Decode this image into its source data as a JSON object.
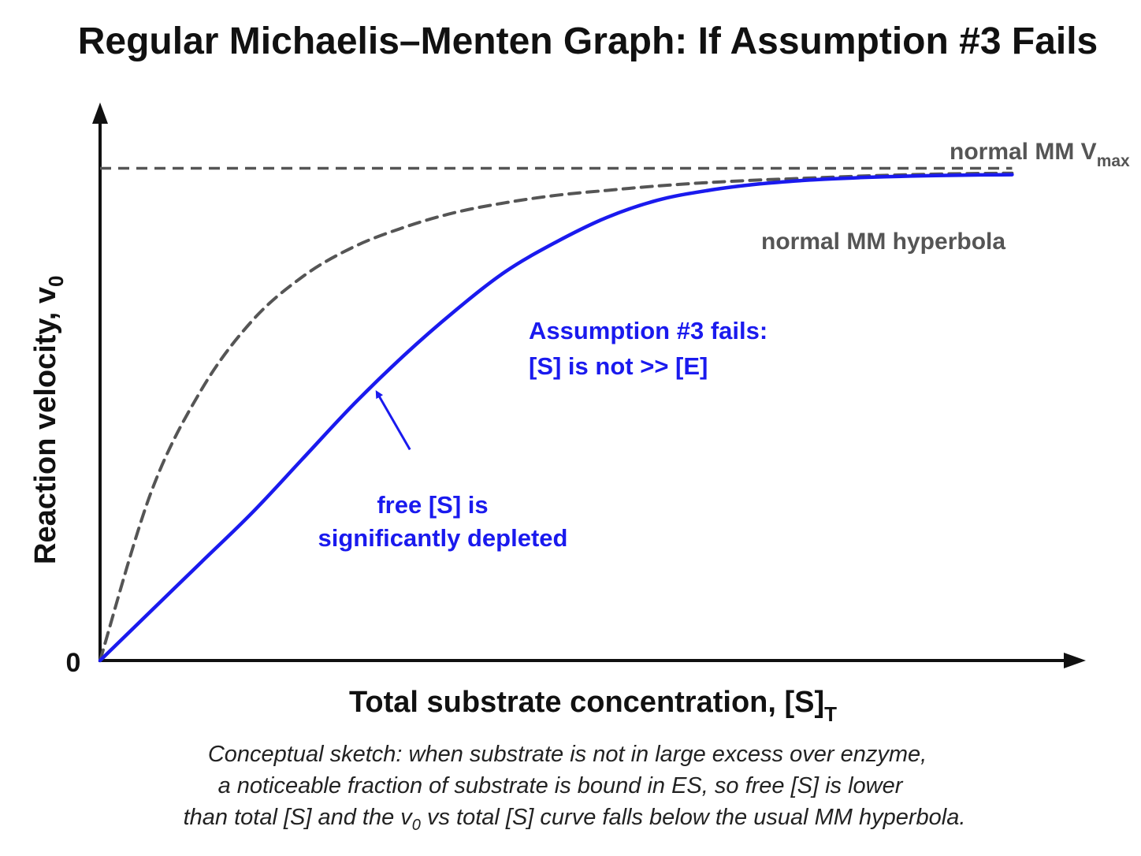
{
  "chart_data": {
    "type": "line",
    "title": "Regular Michaelis–Menten Graph: If Assumption #3 Fails",
    "xlabel": "Total substrate concentration, [S]",
    "xlabel_sub": "T",
    "ylabel": "Reaction velocity, v",
    "ylabel_sub": "0",
    "origin_tick": "0",
    "xlim": [
      0,
      10
    ],
    "ylim": [
      0,
      1.1
    ],
    "grid": false,
    "vmax": 1.0,
    "vmax_label": "normal MM V",
    "vmax_label_sub": "max",
    "series": [
      {
        "name": "normal MM hyperbola",
        "style": "dashed",
        "color": "#555555",
        "x": [
          0,
          0.5,
          1,
          1.5,
          2,
          2.5,
          3,
          3.5,
          4,
          4.5,
          5,
          5.5,
          6,
          6.5,
          7,
          7.5,
          8,
          8.5,
          9
        ],
        "values": [
          0,
          0.34,
          0.55,
          0.69,
          0.78,
          0.84,
          0.88,
          0.91,
          0.93,
          0.945,
          0.955,
          0.964,
          0.971,
          0.976,
          0.98,
          0.984,
          0.987,
          0.989,
          0.99
        ]
      },
      {
        "name": "Assumption #3 fails",
        "style": "solid",
        "color": "#1a1aee",
        "x": [
          0,
          0.5,
          1,
          1.5,
          2,
          2.5,
          3,
          3.5,
          4,
          4.5,
          5,
          5.5,
          6,
          6.5,
          7,
          7.5,
          8,
          8.5,
          9
        ],
        "values": [
          0,
          0.1,
          0.2,
          0.3,
          0.41,
          0.52,
          0.62,
          0.71,
          0.79,
          0.85,
          0.9,
          0.935,
          0.955,
          0.968,
          0.976,
          0.981,
          0.984,
          0.986,
          0.987
        ]
      }
    ],
    "annotations": {
      "hyperbola_label": "normal MM hyperbola",
      "fail_line1": "Assumption #3 fails:",
      "fail_line2": "[S] is not >> [E]",
      "depleted_line1": "free [S] is",
      "depleted_line2": "significantly depleted",
      "arrow_target": {
        "x": 2.7,
        "y": 0.555
      }
    },
    "caption": {
      "line1": "Conceptual sketch: when substrate is not in large excess over enzyme,",
      "line2": "a noticeable fraction of substrate is bound in ES, so free [S] is lower",
      "line3_a": "than total [S] and the v",
      "line3_sub": "0",
      "line3_b": " vs total [S] curve falls below the usual MM hyperbola."
    },
    "colors": {
      "axis": "#111111",
      "gray": "#555555",
      "blue": "#1a1aee"
    }
  }
}
